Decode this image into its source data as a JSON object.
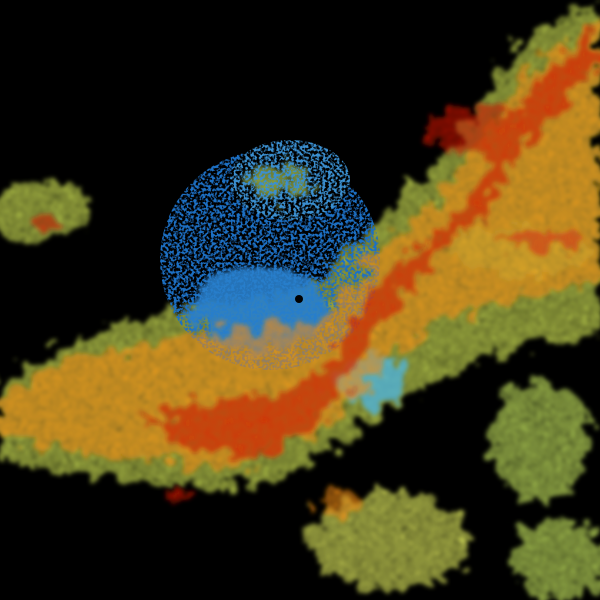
{
  "image": {
    "kind": "weather radar reflectivity",
    "background": "#000000",
    "palette": {
      "blue": "#1e6fc4",
      "cyan": "#4fb3d9",
      "green_yellow": "#c8e860",
      "yellow": "#f0e040",
      "orange": "#f08a10",
      "red": "#c81800"
    },
    "radar_site_marker": "dot-icon"
  }
}
